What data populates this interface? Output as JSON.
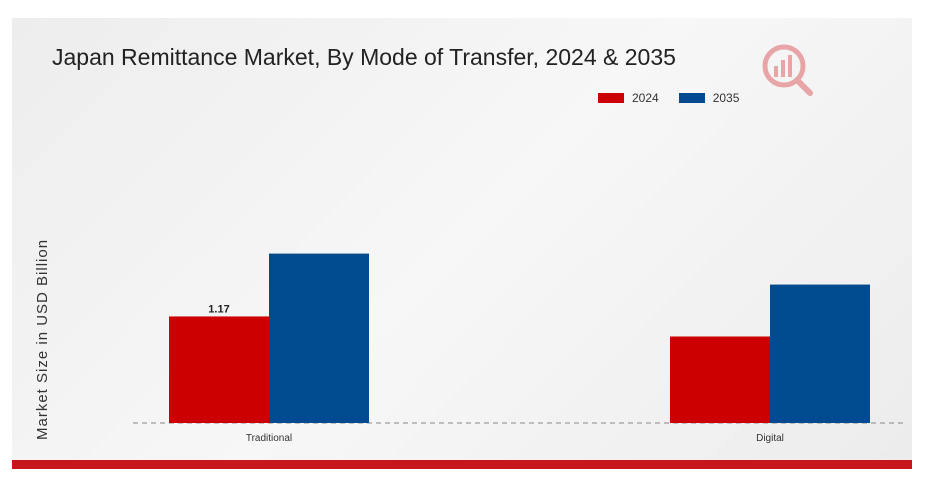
{
  "colors": {
    "series_2024": "#cc0000",
    "series_2035": "#004a8f",
    "accent_bar": "#c8161d"
  },
  "logo": {
    "icon": "magnifier-bar-chart-icon"
  },
  "chart_data": {
    "type": "bar",
    "title": "Japan Remittance Market, By Mode of Transfer, 2024 & 2035",
    "xlabel": "",
    "ylabel": "Market Size in USD Billion",
    "categories": [
      "Traditional",
      "Digital"
    ],
    "series": [
      {
        "name": "2024",
        "values": [
          1.17,
          0.95
        ],
        "color": "#cc0000"
      },
      {
        "name": "2035",
        "values": [
          1.86,
          1.52
        ],
        "color": "#004a8f"
      }
    ],
    "data_labels": [
      {
        "series": "2024",
        "category": "Traditional",
        "text": "1.17"
      }
    ],
    "ylim": [
      0,
      2.8
    ],
    "grid": false,
    "legend_position": "top-right"
  }
}
